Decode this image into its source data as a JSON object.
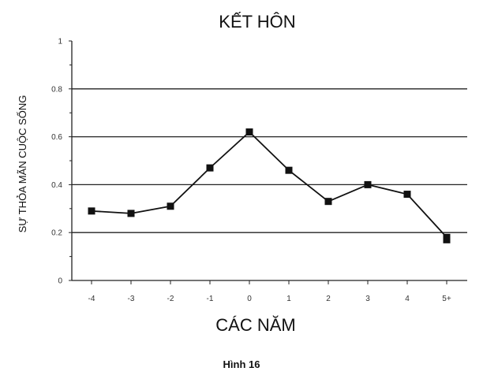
{
  "chart_data": {
    "type": "line",
    "title": "KẾT HÔN",
    "xlabel": "CÁC NĂM",
    "ylabel": "SỰ THỎA MÃN CUỘC SỐNG",
    "categories": [
      "-4",
      "-3",
      "-2",
      "-1",
      "0",
      "1",
      "2",
      "3",
      "4",
      "5+"
    ],
    "series": [
      {
        "values": [
          0.29,
          0.28,
          0.31,
          0.47,
          0.62,
          0.46,
          0.33,
          0.4,
          0.36,
          0.18
        ],
        "color": "#111111"
      }
    ],
    "extra_points": [
      {
        "category": "5+",
        "value": 0.17
      }
    ],
    "ylim": [
      0,
      1
    ],
    "yticks": [
      "0",
      "0.2",
      "0.4",
      "0.6",
      "0.8",
      "1"
    ],
    "yticks_values": [
      0,
      0.2,
      0.4,
      0.6,
      0.8,
      1
    ],
    "grid": true,
    "gridlines_y": [
      0.2,
      0.4,
      0.6,
      0.8
    ],
    "legend": "none",
    "caption": "Hình 16"
  }
}
